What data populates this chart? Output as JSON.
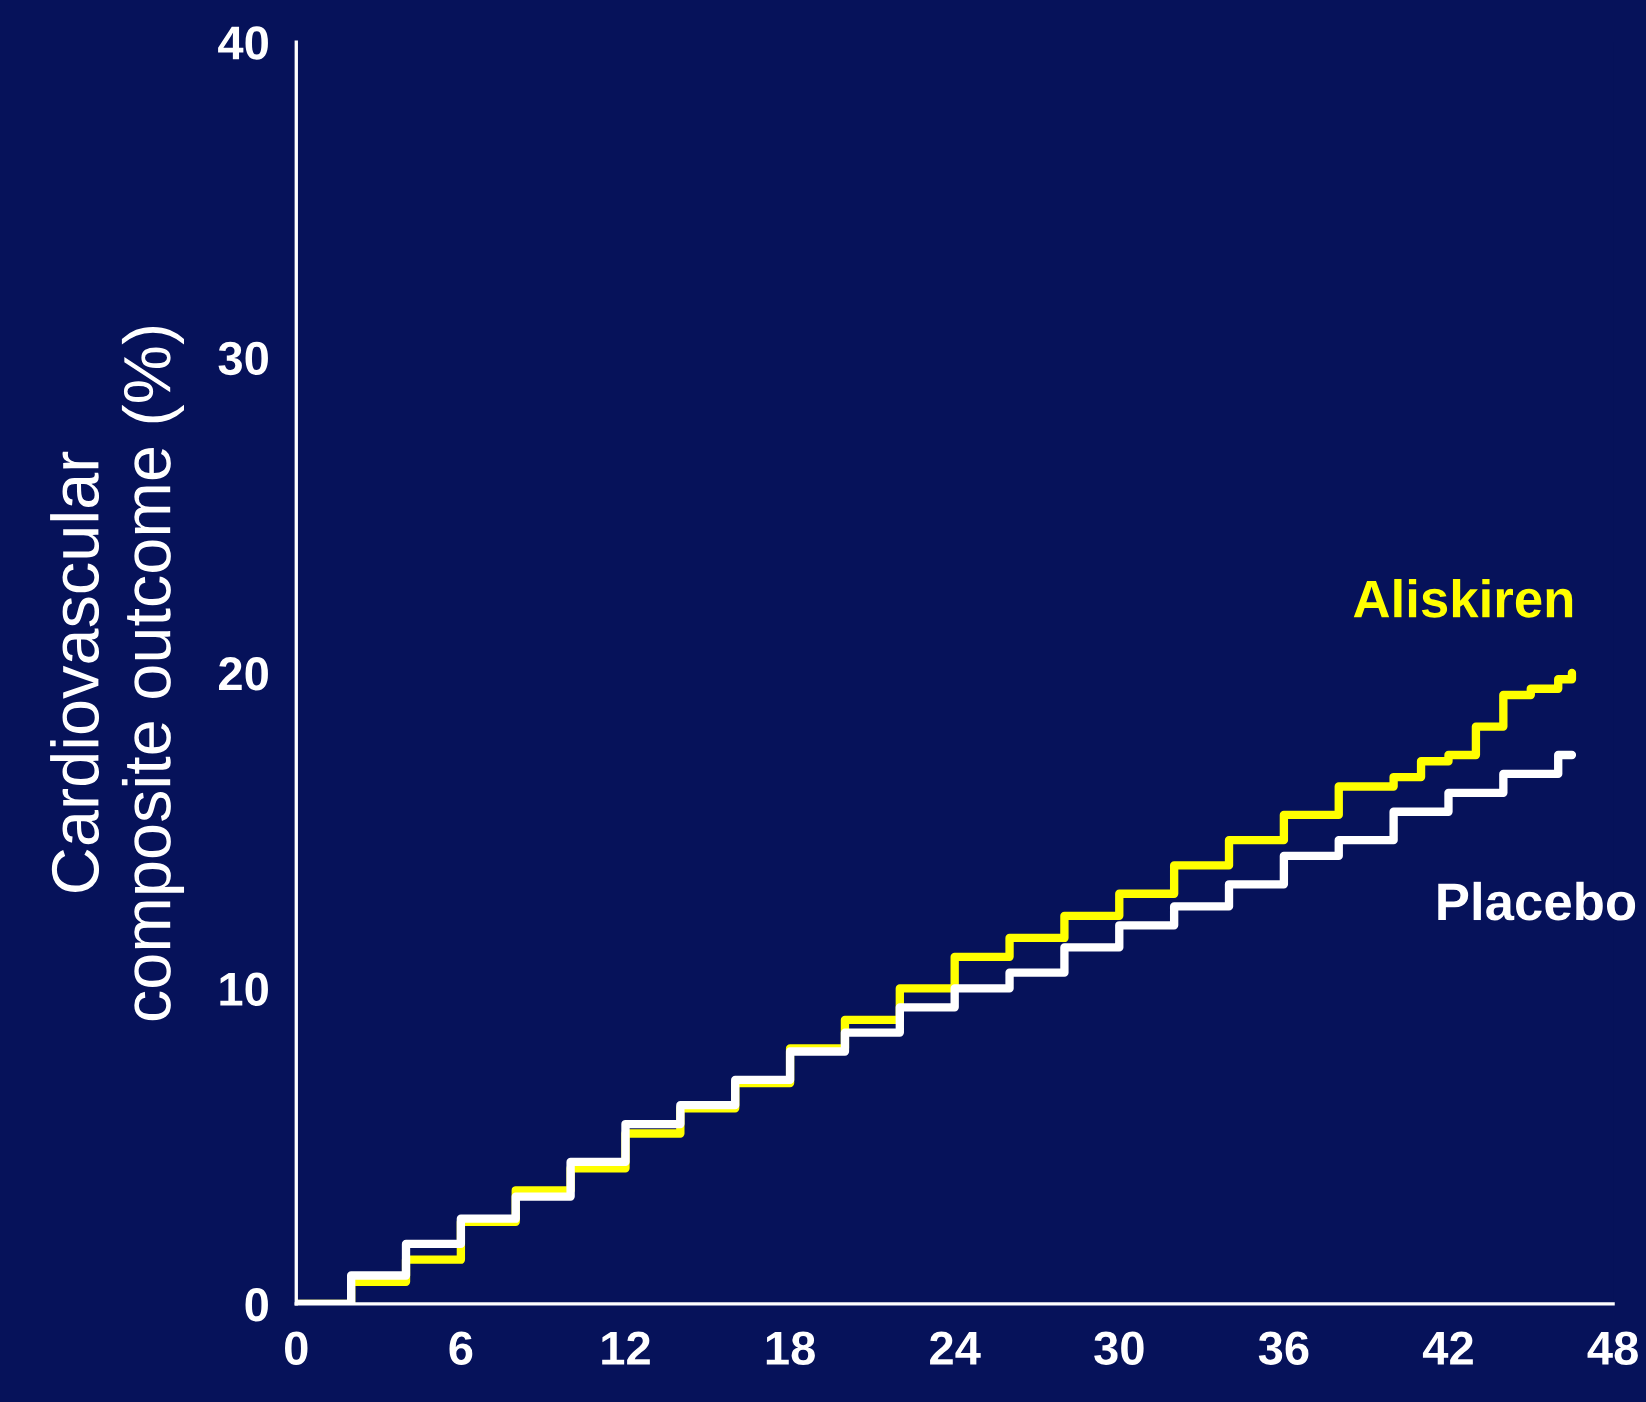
{
  "chart_data": {
    "type": "step",
    "ylabel": "Cardiovascular\ncomposite outcome (%)",
    "xlim": [
      0,
      48
    ],
    "xticks": [
      0,
      6,
      12,
      18,
      24,
      30,
      36,
      42,
      48
    ],
    "ylim": [
      0,
      40
    ],
    "yticks": [
      0,
      10,
      20,
      30,
      40
    ],
    "grid": false,
    "legend": false,
    "series": [
      {
        "name": "Aliskiren",
        "color": "#ffff00",
        "x": [
          0,
          2,
          4,
          6,
          8,
          10,
          12,
          14,
          16,
          18,
          20,
          22,
          24,
          26,
          28,
          30,
          32,
          34,
          36,
          38,
          40,
          41,
          42,
          43,
          44,
          45,
          46,
          46.5
        ],
        "values": [
          0,
          0.7,
          1.4,
          2.6,
          3.6,
          4.3,
          5.4,
          6.2,
          7,
          8.1,
          9,
          10,
          11,
          11.6,
          12.3,
          13,
          13.9,
          14.7,
          15.5,
          16.4,
          16.7,
          17.2,
          17.4,
          18.3,
          19.3,
          19.5,
          19.8,
          20
        ]
      },
      {
        "name": "Placebo",
        "color": "#ffffff",
        "x": [
          0,
          2,
          4,
          6,
          8,
          10,
          12,
          14,
          16,
          18,
          20,
          22,
          24,
          26,
          28,
          30,
          32,
          34,
          36,
          38,
          40,
          42,
          43,
          44,
          45,
          46,
          46.5
        ],
        "values": [
          0,
          0.9,
          1.9,
          2.7,
          3.4,
          4.5,
          5.7,
          6.3,
          7.1,
          8,
          8.6,
          9.4,
          10,
          10.5,
          11.3,
          12,
          12.6,
          13.3,
          14.2,
          14.7,
          15.6,
          16.2,
          16.2,
          16.8,
          16.8,
          17.4,
          17.4
        ]
      }
    ]
  }
}
